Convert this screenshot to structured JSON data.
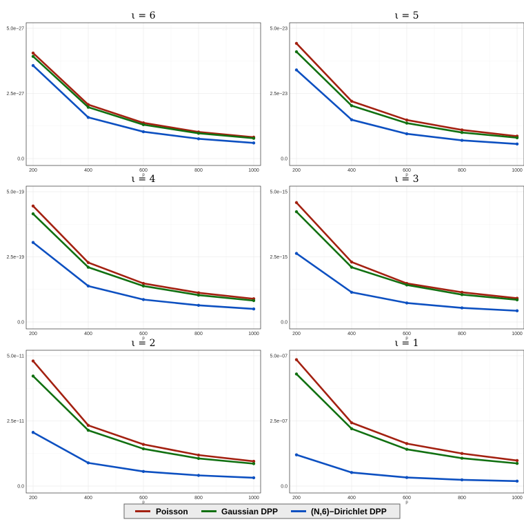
{
  "chart_data": [
    {
      "type": "line",
      "title": "ι = 6",
      "xlabel": "p",
      "ylabel": "",
      "x": [
        200,
        400,
        600,
        800,
        1000
      ],
      "yticks": [
        "0.0",
        "2.5e−27",
        "5.0e−27"
      ],
      "ylim": [
        0,
        5.0
      ],
      "series": [
        {
          "name": "Poisson",
          "values": [
            4.05,
            2.07,
            1.37,
            1.02,
            0.82
          ]
        },
        {
          "name": "Gaussian DPP",
          "values": [
            3.92,
            1.97,
            1.3,
            0.97,
            0.78
          ]
        },
        {
          "name": "(N,6)−Dirichlet DPP",
          "values": [
            3.57,
            1.58,
            1.03,
            0.76,
            0.6
          ]
        }
      ]
    },
    {
      "type": "line",
      "title": "ι = 5",
      "xlabel": "p",
      "ylabel": "",
      "x": [
        200,
        400,
        600,
        800,
        1000
      ],
      "yticks": [
        "0.0",
        "2.5e−23",
        "5.0e−23"
      ],
      "ylim": [
        0,
        5.0
      ],
      "series": [
        {
          "name": "Poisson",
          "values": [
            4.42,
            2.2,
            1.48,
            1.1,
            0.86
          ]
        },
        {
          "name": "Gaussian DPP",
          "values": [
            4.1,
            2.03,
            1.36,
            1.0,
            0.8
          ]
        },
        {
          "name": "(N,6)−Dirichlet DPP",
          "values": [
            3.4,
            1.49,
            0.95,
            0.7,
            0.56
          ]
        }
      ]
    },
    {
      "type": "line",
      "title": "ι = 4",
      "xlabel": "p",
      "ylabel": "",
      "x": [
        200,
        400,
        600,
        800,
        1000
      ],
      "yticks": [
        "0.0",
        "2.5e−19",
        "5.0e−19"
      ],
      "ylim": [
        0,
        5.0
      ],
      "series": [
        {
          "name": "Poisson",
          "values": [
            4.45,
            2.28,
            1.48,
            1.12,
            0.89
          ]
        },
        {
          "name": "Gaussian DPP",
          "values": [
            4.15,
            2.1,
            1.38,
            1.03,
            0.82
          ]
        },
        {
          "name": "(N,6)−Dirichlet DPP",
          "values": [
            3.05,
            1.38,
            0.86,
            0.64,
            0.5
          ]
        }
      ]
    },
    {
      "type": "line",
      "title": "ι = 3",
      "xlabel": "p",
      "ylabel": "",
      "x": [
        200,
        400,
        600,
        800,
        1000
      ],
      "yticks": [
        "0.0",
        "2.5e−15",
        "5.0e−15"
      ],
      "ylim": [
        0,
        5.0
      ],
      "series": [
        {
          "name": "Poisson",
          "values": [
            4.58,
            2.3,
            1.48,
            1.14,
            0.91
          ]
        },
        {
          "name": "Gaussian DPP",
          "values": [
            4.23,
            2.1,
            1.42,
            1.05,
            0.85
          ]
        },
        {
          "name": "(N,6)−Dirichlet DPP",
          "values": [
            2.63,
            1.14,
            0.73,
            0.54,
            0.43
          ]
        }
      ]
    },
    {
      "type": "line",
      "title": "ι = 2",
      "xlabel": "p",
      "ylabel": "",
      "x": [
        200,
        400,
        600,
        800,
        1000
      ],
      "yticks": [
        "0.0",
        "2.5e−11",
        "5.0e−11"
      ],
      "ylim": [
        0,
        5.0
      ],
      "series": [
        {
          "name": "Poisson",
          "values": [
            4.8,
            2.33,
            1.6,
            1.19,
            0.95
          ]
        },
        {
          "name": "Gaussian DPP",
          "values": [
            4.22,
            2.14,
            1.43,
            1.06,
            0.86
          ]
        },
        {
          "name": "(N,6)−Dirichlet DPP",
          "values": [
            2.06,
            0.89,
            0.56,
            0.41,
            0.32
          ]
        }
      ]
    },
    {
      "type": "line",
      "title": "ι = 1",
      "xlabel": "p",
      "ylabel": "",
      "x": [
        200,
        400,
        600,
        800,
        1000
      ],
      "yticks": [
        "0.0",
        "2.5e−07",
        "5.0e−07"
      ],
      "ylim": [
        0,
        5.0
      ],
      "series": [
        {
          "name": "Poisson",
          "values": [
            4.85,
            2.43,
            1.63,
            1.25,
            0.98
          ]
        },
        {
          "name": "Gaussian DPP",
          "values": [
            4.3,
            2.2,
            1.41,
            1.07,
            0.87
          ]
        },
        {
          "name": "(N,6)−Dirichlet DPP",
          "values": [
            1.2,
            0.52,
            0.33,
            0.24,
            0.19
          ]
        }
      ]
    }
  ],
  "legend": {
    "placement": "bottom-center",
    "entries": [
      {
        "label": "Poisson",
        "color": "#a32111"
      },
      {
        "label": "Gaussian DPP",
        "color": "#117011"
      },
      {
        "label": "(N,6)−Dirichlet DPP",
        "color": "#0d50c1"
      }
    ]
  },
  "colors": {
    "Poisson": "#a32111",
    "Gaussian DPP": "#117011",
    "(N,6)−Dirichlet DPP": "#0d50c1"
  }
}
